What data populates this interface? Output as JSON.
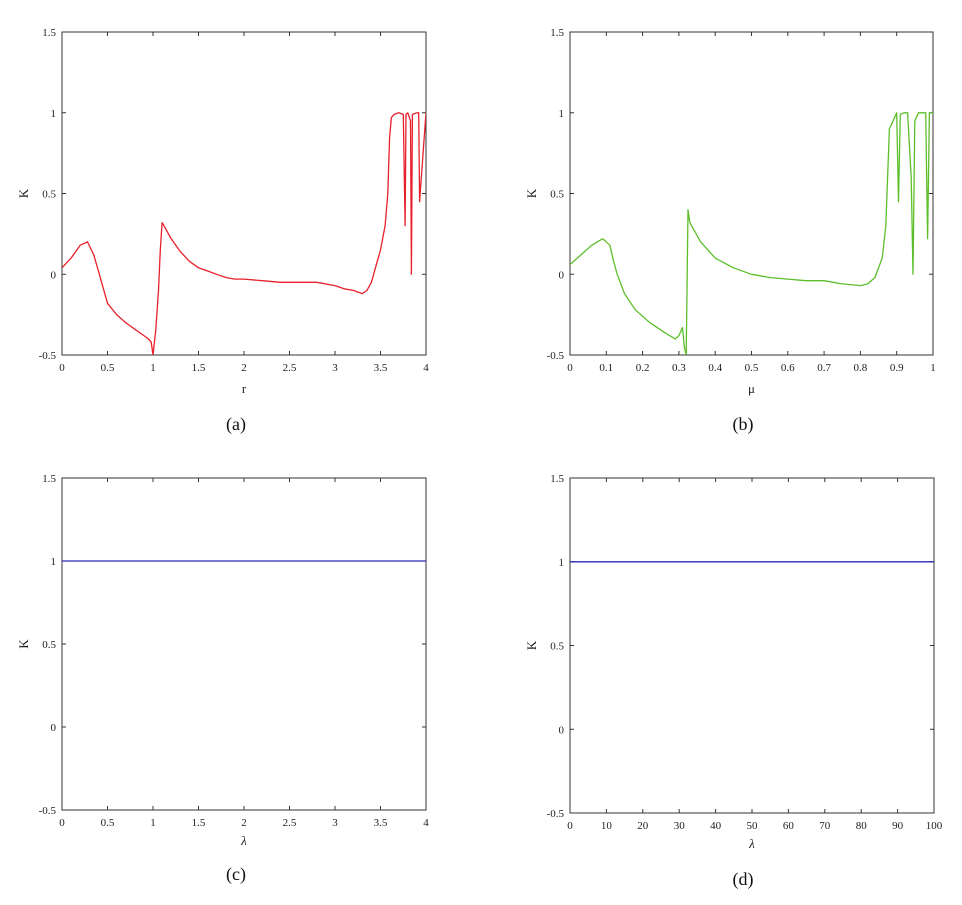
{
  "chart_data": [
    {
      "type": "line",
      "caption": "(a)",
      "xlabel": "r",
      "ylabel": "K",
      "xlim": [
        0,
        4
      ],
      "ylim": [
        -0.5,
        1.5
      ],
      "xticks": [
        "0",
        "0.5",
        "1",
        "1.5",
        "2",
        "2.5",
        "3",
        "3.5",
        "4"
      ],
      "yticks": [
        "-0.5",
        "0",
        "0.5",
        "1",
        "1.5"
      ],
      "color": "#e8202a",
      "series": [
        {
          "x": [
            0,
            0.1,
            0.2,
            0.28,
            0.35,
            0.4,
            0.45,
            0.5,
            0.6,
            0.7,
            0.8,
            0.9,
            0.95,
            0.98,
            1.0,
            1.03,
            1.06,
            1.08,
            1.1,
            1.2,
            1.3,
            1.4,
            1.5,
            1.6,
            1.7,
            1.8,
            1.9,
            2.0,
            2.2,
            2.4,
            2.6,
            2.8,
            3.0,
            3.1,
            3.2,
            3.3,
            3.35,
            3.4,
            3.45,
            3.5,
            3.55,
            3.58,
            3.6,
            3.62,
            3.65,
            3.7,
            3.75,
            3.77,
            3.78,
            3.8,
            3.83,
            3.84,
            3.85,
            3.9,
            3.92,
            3.93,
            4.0
          ],
          "y": [
            0.04,
            0.1,
            0.18,
            0.2,
            0.12,
            0.02,
            -0.08,
            -0.18,
            -0.25,
            -0.3,
            -0.34,
            -0.38,
            -0.4,
            -0.42,
            -0.5,
            -0.35,
            -0.1,
            0.15,
            0.32,
            0.22,
            0.14,
            0.08,
            0.04,
            0.02,
            0.0,
            -0.02,
            -0.03,
            -0.03,
            -0.04,
            -0.05,
            -0.05,
            -0.05,
            -0.07,
            -0.09,
            -0.1,
            -0.12,
            -0.1,
            -0.05,
            0.05,
            0.15,
            0.3,
            0.5,
            0.85,
            0.97,
            0.99,
            1.0,
            0.99,
            0.3,
            0.99,
            1.0,
            0.95,
            0.0,
            0.99,
            1.0,
            1.0,
            0.45,
            1.0
          ]
        }
      ]
    },
    {
      "type": "line",
      "caption": "(b)",
      "xlabel": "μ",
      "ylabel": "K",
      "xlim": [
        0,
        1
      ],
      "ylim": [
        -0.5,
        1.5
      ],
      "xticks": [
        "0",
        "0.1",
        "0.2",
        "0.3",
        "0.4",
        "0.5",
        "0.6",
        "0.7",
        "0.8",
        "0.9",
        "1"
      ],
      "yticks": [
        "-0.5",
        "0",
        "0.5",
        "1",
        "1.5"
      ],
      "color": "#5cbf2a",
      "series": [
        {
          "x": [
            0,
            0.03,
            0.06,
            0.09,
            0.11,
            0.12,
            0.13,
            0.15,
            0.18,
            0.22,
            0.26,
            0.29,
            0.3,
            0.31,
            0.315,
            0.32,
            0.325,
            0.33,
            0.36,
            0.4,
            0.45,
            0.5,
            0.55,
            0.6,
            0.65,
            0.7,
            0.75,
            0.8,
            0.82,
            0.84,
            0.86,
            0.87,
            0.88,
            0.9,
            0.905,
            0.91,
            0.92,
            0.93,
            0.94,
            0.945,
            0.95,
            0.96,
            0.97,
            0.98,
            0.985,
            0.99,
            1.0
          ],
          "y": [
            0.06,
            0.12,
            0.18,
            0.22,
            0.18,
            0.08,
            0.0,
            -0.12,
            -0.22,
            -0.3,
            -0.36,
            -0.4,
            -0.38,
            -0.33,
            -0.45,
            -0.5,
            0.4,
            0.32,
            0.2,
            0.1,
            0.04,
            0.0,
            -0.02,
            -0.03,
            -0.04,
            -0.04,
            -0.06,
            -0.07,
            -0.06,
            -0.02,
            0.1,
            0.3,
            0.9,
            1.0,
            0.45,
            0.99,
            1.0,
            1.0,
            0.6,
            0.0,
            0.95,
            1.0,
            1.0,
            1.0,
            0.22,
            1.0,
            1.0
          ]
        }
      ]
    },
    {
      "type": "line",
      "caption": "(c)",
      "xlabel": "λ",
      "ylabel": "K",
      "xlim": [
        0,
        4
      ],
      "ylim": [
        -0.5,
        1.5
      ],
      "xticks": [
        "0",
        "0.5",
        "1",
        "1.5",
        "2",
        "2.5",
        "3",
        "3.5",
        "4"
      ],
      "yticks": [
        "-0.5",
        "0",
        "0.5",
        "1",
        "1.5"
      ],
      "color": "#2a2ab8",
      "series": [
        {
          "x": [
            0,
            4
          ],
          "y": [
            1.0,
            1.0
          ]
        }
      ]
    },
    {
      "type": "line",
      "caption": "(d)",
      "xlabel": "λ",
      "ylabel": "K",
      "xlim": [
        0,
        100
      ],
      "ylim": [
        -0.5,
        1.5
      ],
      "xticks": [
        "0",
        "10",
        "20",
        "30",
        "40",
        "50",
        "60",
        "70",
        "80",
        "90",
        "100"
      ],
      "yticks": [
        "-0.5",
        "0",
        "0.5",
        "1",
        "1.5"
      ],
      "color": "#2a2ab8",
      "series": [
        {
          "x": [
            0,
            100
          ],
          "y": [
            1.0,
            1.0
          ]
        }
      ]
    }
  ]
}
